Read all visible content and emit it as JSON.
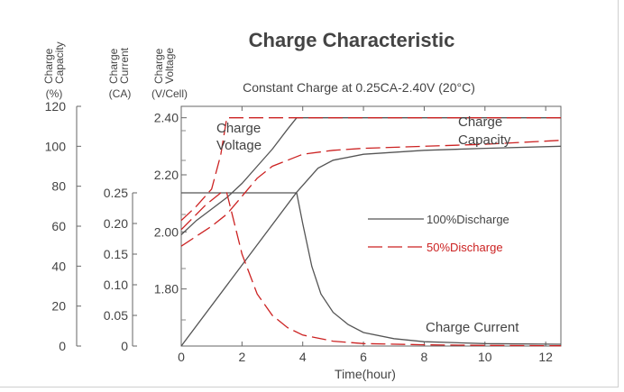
{
  "chart_data": {
    "type": "line",
    "title": "Charge Characteristic",
    "subtitle": "Constant Charge at 0.25CA-2.40V  (20°C)",
    "xlabel": "Time(hour)",
    "xlim": [
      0,
      12.5
    ],
    "x_ticks": [
      "0",
      "2",
      "4",
      "6",
      "8",
      "10",
      "12"
    ],
    "axes": {
      "capacity": {
        "label_lines": [
          "Charge",
          "Capacity"
        ],
        "unit": "(%)",
        "range": [
          0,
          120
        ],
        "ticks": [
          "0",
          "20",
          "40",
          "60",
          "80",
          "100",
          "120"
        ]
      },
      "current": {
        "label_lines": [
          "Charge",
          "Current"
        ],
        "unit": "(CA)",
        "range": [
          0,
          0.25
        ],
        "ticks": [
          "0",
          "0.05",
          "0.10",
          "0.15",
          "0.20",
          "0.25"
        ]
      },
      "voltage": {
        "label_lines": [
          "Charge",
          "Voltage"
        ],
        "unit": "(V/Cell)",
        "range": [
          1.6,
          2.44
        ],
        "ticks": [
          "1.80",
          "2.00",
          "2.20",
          "2.40"
        ]
      }
    },
    "legend": {
      "placement": "center-right",
      "entries": [
        "100%Discharge",
        "50%Discharge"
      ]
    },
    "annotations": {
      "voltage_label_lines": [
        "Charge",
        "Voltage"
      ],
      "capacity_label_lines": [
        "Charge",
        "Capacity"
      ],
      "current_label": "Charge Current"
    },
    "colors": {
      "100%Discharge": "#555555",
      "50%Discharge": "#cc2222"
    },
    "series": [
      {
        "name": "100%Discharge",
        "quantity": "voltage",
        "axis": "voltage",
        "x": [
          0,
          0.5,
          1,
          1.5,
          2,
          2.5,
          3,
          3.5,
          3.8,
          12.5
        ],
        "y": [
          1.99,
          2.04,
          2.08,
          2.12,
          2.17,
          2.23,
          2.29,
          2.36,
          2.4,
          2.4
        ]
      },
      {
        "name": "100%Discharge",
        "quantity": "capacity",
        "axis": "capacity",
        "x": [
          0,
          3.8,
          4.5,
          5,
          6,
          8,
          10,
          12.5
        ],
        "y": [
          0,
          77,
          89,
          93,
          96,
          98,
          99,
          100
        ]
      },
      {
        "name": "100%Discharge",
        "quantity": "current",
        "axis": "current",
        "x": [
          0,
          3.8,
          4,
          4.3,
          4.6,
          5,
          5.5,
          6,
          7,
          8,
          10,
          12.5
        ],
        "y": [
          0.25,
          0.25,
          0.2,
          0.13,
          0.085,
          0.055,
          0.035,
          0.022,
          0.012,
          0.007,
          0.004,
          0.003
        ]
      },
      {
        "name": "50%Discharge",
        "quantity": "voltage",
        "axis": "voltage",
        "x": [
          0,
          0.5,
          1,
          1.3,
          1.5,
          12.5
        ],
        "y": [
          2.04,
          2.09,
          2.15,
          2.27,
          2.4,
          2.4
        ]
      },
      {
        "name": "50%Discharge",
        "quantity": "capacity",
        "axis": "capacity",
        "x": [
          0,
          0.5,
          1,
          1.5,
          2,
          2.5,
          3,
          4,
          5,
          6,
          8,
          10,
          12.5
        ],
        "y": [
          50,
          55,
          60,
          66,
          75,
          84,
          90,
          96,
          98,
          99,
          100,
          101,
          103
        ]
      },
      {
        "name": "50%Discharge",
        "quantity": "current",
        "axis": "current",
        "x": [
          0,
          0.8,
          1.3,
          1.5,
          1.7,
          2,
          2.5,
          3,
          3.5,
          4,
          5,
          6,
          8,
          10,
          12.5
        ],
        "y": [
          0.19,
          0.23,
          0.25,
          0.25,
          0.21,
          0.15,
          0.085,
          0.05,
          0.03,
          0.018,
          0.008,
          0.004,
          0.002,
          0.001,
          0.0005
        ]
      }
    ]
  }
}
